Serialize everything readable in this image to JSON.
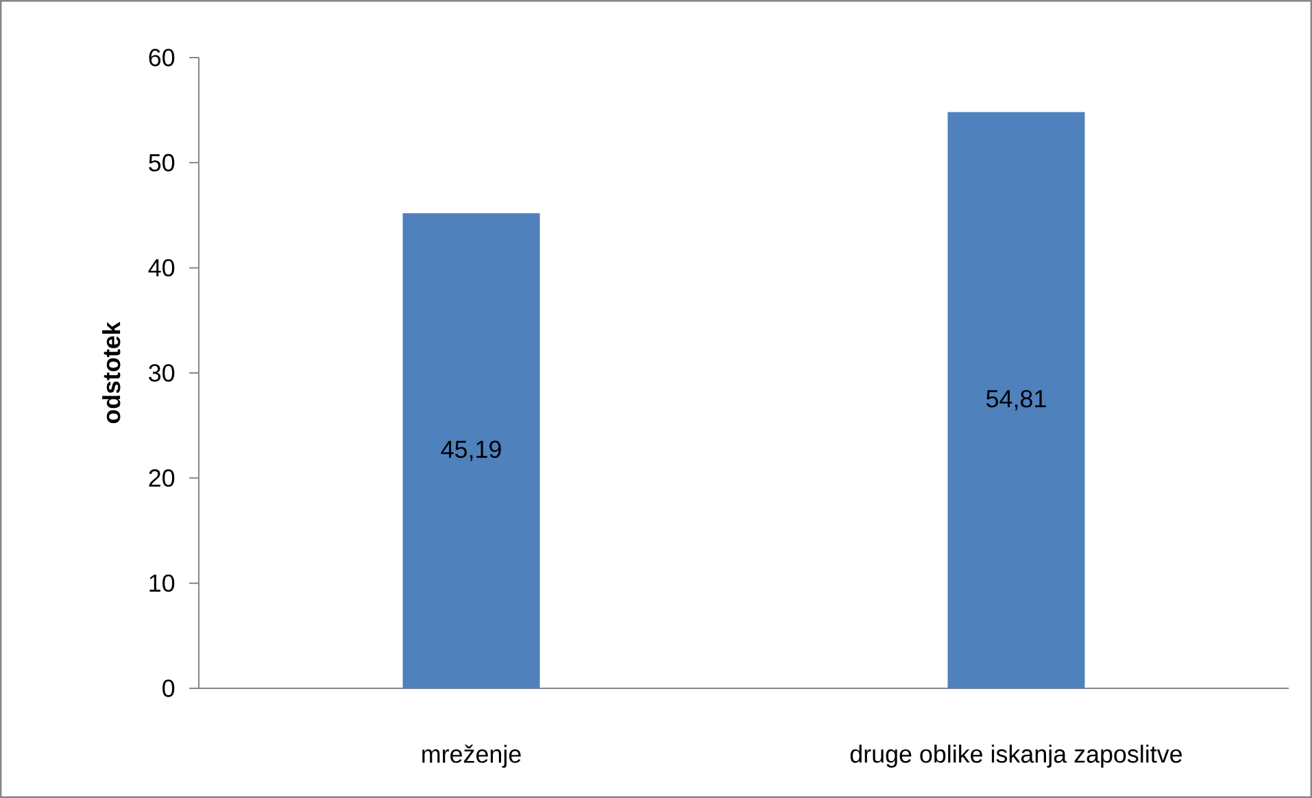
{
  "chart_data": {
    "type": "bar",
    "ylabel": "odstotek",
    "categories": [
      "mreženje",
      "druge oblike iskanja  zaposlitve"
    ],
    "values": [
      45.19,
      54.81
    ],
    "value_labels": [
      "45,19",
      "54,81"
    ],
    "color": "#4f81bd",
    "ylim": [
      0,
      60
    ],
    "yticks": [
      0,
      10,
      20,
      30,
      40,
      50,
      60
    ]
  }
}
